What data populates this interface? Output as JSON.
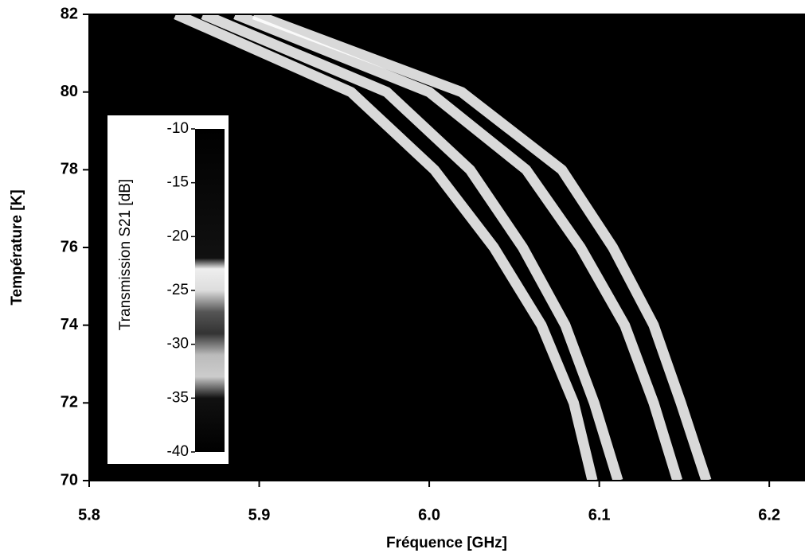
{
  "chart_data": {
    "type": "heatmap-curves",
    "x_label": "Fréquence [GHz]",
    "y_label": "Température [K]",
    "xlim": [
      5.8,
      6.221
    ],
    "ylim": [
      70,
      82
    ],
    "xticks": [
      {
        "value": 5.8,
        "label": "5.8"
      },
      {
        "value": 5.9,
        "label": "5.9"
      },
      {
        "value": 6,
        "label": "6.0"
      },
      {
        "value": 6.1,
        "label": "6.1"
      },
      {
        "value": 6.2,
        "label": "6.2"
      }
    ],
    "yticks": [
      70,
      72,
      74,
      76,
      78,
      80,
      82
    ],
    "background": "#000000",
    "series": [
      {
        "color": "#ffffff",
        "x": [
          5.851,
          5.954,
          6.003,
          6.038,
          6.066,
          6.085,
          6.096
        ],
        "y": [
          82,
          80,
          78,
          76,
          74,
          72,
          70
        ]
      },
      {
        "color": "#ffffff",
        "x": [
          5.867,
          5.975,
          6.024,
          6.055,
          6.08,
          6.097,
          6.111
        ],
        "y": [
          82,
          80,
          78,
          76,
          74,
          72,
          70
        ]
      },
      {
        "color": "#ffffff",
        "x": [
          5.886,
          6.0,
          6.057,
          6.089,
          6.115,
          6.132,
          6.146
        ],
        "y": [
          82,
          80,
          78,
          76,
          74,
          72,
          70
        ]
      },
      {
        "color": "#ffffff",
        "x": [
          5.897,
          6.019,
          6.078,
          6.108,
          6.132,
          6.148,
          6.163
        ],
        "y": [
          82,
          80,
          78,
          76,
          74,
          72,
          70
        ]
      }
    ],
    "colorbar": {
      "label": "Transmission S21 [dB]",
      "lim": [
        -40,
        -10
      ],
      "ticks": [
        -10,
        -15,
        -20,
        -25,
        -30,
        -35,
        -40
      ],
      "stops": [
        {
          "value": -40,
          "color": "#000000"
        },
        {
          "value": -35,
          "color": "#111111"
        },
        {
          "value": -33,
          "color": "#cccccc"
        },
        {
          "value": -31,
          "color": "#bbbbbb"
        },
        {
          "value": -29,
          "color": "#333333"
        },
        {
          "value": -27,
          "color": "#555555"
        },
        {
          "value": -25,
          "color": "#dddddd"
        },
        {
          "value": -23,
          "color": "#eeeeee"
        },
        {
          "value": -22,
          "color": "#111111"
        },
        {
          "value": -10,
          "color": "#000000"
        }
      ]
    }
  }
}
